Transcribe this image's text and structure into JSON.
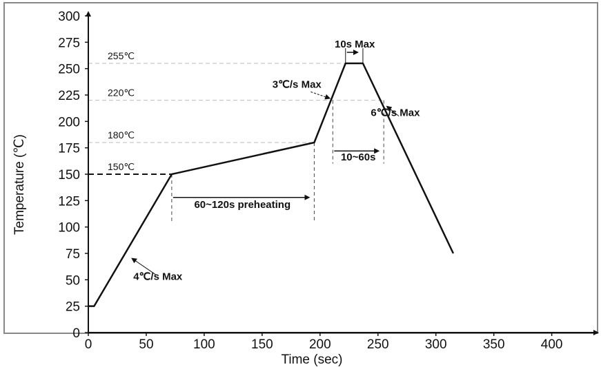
{
  "chart_data": {
    "type": "line",
    "title": "",
    "xlabel": "Time (sec)",
    "ylabel": "Temperature (℃)",
    "xlim": [
      0,
      430
    ],
    "ylim": [
      0,
      300
    ],
    "xticks": [
      0,
      50,
      100,
      150,
      200,
      250,
      300,
      350,
      400
    ],
    "yticks": [
      0,
      25,
      50,
      75,
      100,
      125,
      150,
      175,
      200,
      225,
      250,
      275,
      300
    ],
    "grid": false,
    "series": [
      {
        "values": [
          {
            "x": 0,
            "y": 25
          },
          {
            "x": 5,
            "y": 25
          },
          {
            "x": 72,
            "y": 150
          },
          {
            "x": 195,
            "y": 180
          },
          {
            "x": 222,
            "y": 255
          },
          {
            "x": 237,
            "y": 255
          },
          {
            "x": 315,
            "y": 75
          }
        ]
      }
    ],
    "reference_lines": [
      {
        "label": "255℃",
        "y": 255,
        "x_end": 237
      },
      {
        "label": "220℃",
        "y": 220,
        "x_end": 255
      },
      {
        "label": "180℃",
        "y": 180,
        "x_end": 195
      },
      {
        "label": "150℃",
        "y": 150,
        "x_end": 72
      }
    ],
    "vertical_markers": [
      {
        "x": 72,
        "y_from": 150,
        "y_to": 105
      },
      {
        "x": 195,
        "y_from": 180,
        "y_to": 105
      },
      {
        "x": 211,
        "y_from": 220,
        "y_to": 160
      },
      {
        "x": 255,
        "y_from": 220,
        "y_to": 160
      }
    ],
    "annotations": [
      {
        "text": "10s Max",
        "x": 230,
        "y": 270
      },
      {
        "text": "3℃/s Max",
        "x": 180,
        "y": 232
      },
      {
        "text": "6℃/s Max",
        "x": 265,
        "y": 205
      },
      {
        "text": "10~60s",
        "x": 233,
        "y": 163
      },
      {
        "text": "60~120s preheating",
        "x": 133,
        "y": 118
      },
      {
        "text": "4℃/s Max",
        "x": 60,
        "y": 50
      }
    ]
  }
}
